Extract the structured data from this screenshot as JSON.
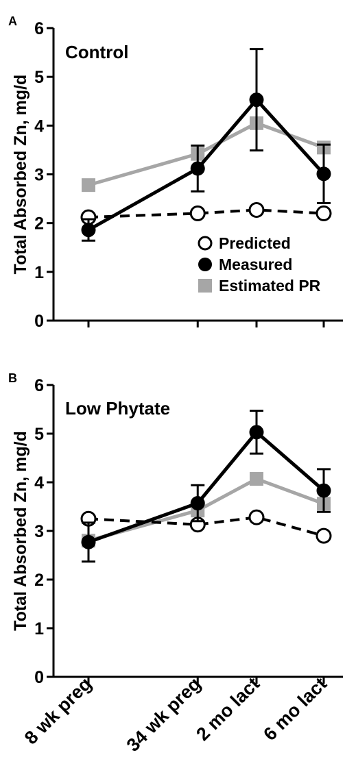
{
  "chart_data": [
    {
      "panel_label": "A",
      "title": "Control",
      "type": "line",
      "ylabel": "Total Absorbed Zn, mg/d",
      "ylim": [
        0,
        6
      ],
      "yticks": [
        "0",
        "1",
        "2",
        "3",
        "4",
        "5",
        "6"
      ],
      "series": [
        {
          "name": "Predicted",
          "color": "#000000",
          "marker": "open-circle",
          "line": "dashed",
          "values": [
            2.12,
            2.2,
            2.27,
            2.2
          ],
          "err": [
            0,
            0,
            0,
            0
          ]
        },
        {
          "name": "Measured",
          "color": "#000000",
          "marker": "filled-circle",
          "line": "solid",
          "values": [
            1.86,
            3.12,
            4.53,
            3.01
          ],
          "err": [
            0.22,
            0.47,
            1.04,
            0.6
          ]
        },
        {
          "name": "Estimated PR",
          "color": "#a6a6a6",
          "marker": "square",
          "line": "solid",
          "values": [
            2.78,
            3.42,
            4.05,
            3.55
          ],
          "err": [
            0,
            0,
            0,
            0
          ]
        }
      ],
      "legend": [
        "Predicted",
        "Measured",
        "Estimated PR"
      ],
      "legend_position": "lower-right"
    },
    {
      "panel_label": "B",
      "title": "Low Phytate",
      "type": "line",
      "ylabel": "Total Absorbed Zn, mg/d",
      "ylim": [
        0,
        6
      ],
      "yticks": [
        "0",
        "1",
        "2",
        "3",
        "4",
        "5",
        "6"
      ],
      "series": [
        {
          "name": "Predicted",
          "color": "#000000",
          "marker": "open-circle",
          "line": "dashed",
          "values": [
            3.25,
            3.13,
            3.28,
            2.9
          ],
          "err": [
            0,
            0,
            0,
            0
          ]
        },
        {
          "name": "Measured",
          "color": "#000000",
          "marker": "filled-circle",
          "line": "solid",
          "values": [
            2.77,
            3.57,
            5.03,
            3.83
          ],
          "err": [
            0.4,
            0.37,
            0.44,
            0.44
          ]
        },
        {
          "name": "Estimated PR",
          "color": "#a6a6a6",
          "marker": "square",
          "line": "solid",
          "values": [
            2.8,
            3.42,
            4.07,
            3.56
          ],
          "err": [
            0,
            0,
            0,
            0
          ]
        }
      ]
    }
  ],
  "categories": [
    "8 wk preg",
    "34 wk preg",
    "2 mo lact",
    "6 mo lact"
  ],
  "x_positions": [
    8,
    34,
    48,
    64
  ]
}
